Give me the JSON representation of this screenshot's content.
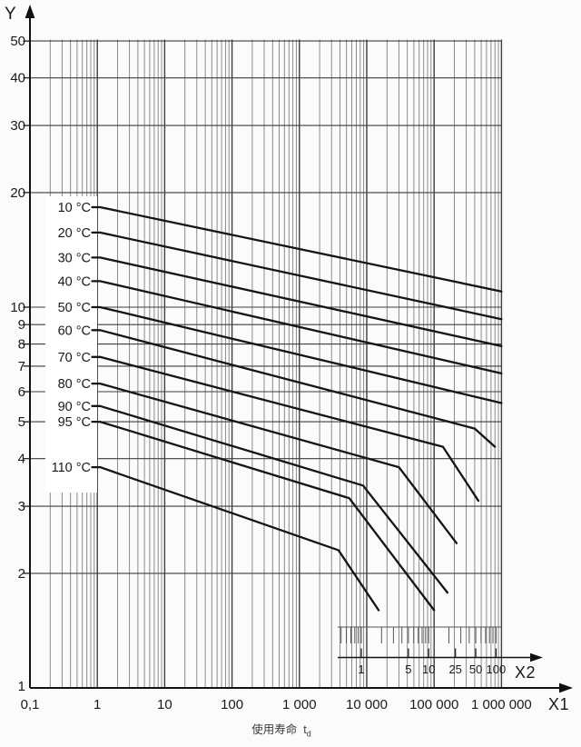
{
  "labels": {
    "y_axis": "Y",
    "x1_axis": "X1",
    "x2_axis": "X2"
  },
  "caption": {
    "text": "使用寿命",
    "symbol": "t",
    "symbol_sub": "d"
  },
  "colors": {
    "curve": "#141414",
    "grid_major": "#3e3e3e",
    "grid_minor": "#808080",
    "axis": "#111111",
    "background": "#fbfbfb",
    "label_box": "#ffffff"
  },
  "chart_data": {
    "type": "line",
    "title": "",
    "description": "Service-life nomogram: temperature curves on log-log grid",
    "x1_axis": {
      "label": "X1",
      "scale": "log",
      "range": [
        0.1,
        1000000
      ],
      "ticks": [
        {
          "v": 0.1,
          "label": "0,1"
        },
        {
          "v": 1,
          "label": "1"
        },
        {
          "v": 10,
          "label": "10"
        },
        {
          "v": 100,
          "label": "100"
        },
        {
          "v": 1000,
          "label": "1 000"
        },
        {
          "v": 10000,
          "label": "10 000"
        },
        {
          "v": 100000,
          "label": "100 000"
        },
        {
          "v": 1000000,
          "label": "1 000 000"
        }
      ]
    },
    "y_axis": {
      "label": "Y",
      "scale": "log",
      "range": [
        1,
        55
      ],
      "ticks": [
        {
          "v": 50,
          "label": "50"
        },
        {
          "v": 40,
          "label": "40"
        },
        {
          "v": 30,
          "label": "30"
        },
        {
          "v": 20,
          "label": "20"
        },
        {
          "v": 10,
          "label": "10"
        },
        {
          "v": 9,
          "label": "9"
        },
        {
          "v": 8,
          "label": "8"
        },
        {
          "v": 7,
          "label": "7"
        },
        {
          "v": 6,
          "label": "6"
        },
        {
          "v": 5,
          "label": "5"
        },
        {
          "v": 4,
          "label": "4"
        },
        {
          "v": 3,
          "label": "3"
        },
        {
          "v": 2,
          "label": "2"
        },
        {
          "v": 1,
          "label": "1"
        }
      ],
      "gridlines": [
        2,
        3,
        4,
        5,
        6,
        7,
        8,
        9,
        10,
        20,
        30,
        40,
        50
      ]
    },
    "x2_axis": {
      "label": "X2",
      "scale": "log",
      "range": [
        0.5,
        100
      ],
      "labeled_ticks": [
        {
          "v": 1,
          "label": "1"
        },
        {
          "v": 5,
          "label": "5"
        },
        {
          "v": 10,
          "label": "10"
        },
        {
          "v": 25,
          "label": "25"
        },
        {
          "v": 50,
          "label": "50"
        },
        {
          "v": 100,
          "label": "100"
        }
      ],
      "minor_ticks": [
        0.5,
        0.6,
        0.7,
        0.8,
        0.9,
        1,
        2,
        3,
        4,
        5,
        6,
        7,
        8,
        9,
        10,
        20,
        30,
        40,
        50,
        60,
        70,
        80,
        90,
        100
      ]
    },
    "series": [
      {
        "label": "10 °C",
        "points": [
          [
            1.1,
            18.3
          ],
          [
            1000000,
            11.0
          ]
        ]
      },
      {
        "label": "20 °C",
        "points": [
          [
            1.1,
            15.7
          ],
          [
            1000000,
            9.3
          ]
        ]
      },
      {
        "label": "30 °C",
        "points": [
          [
            1.1,
            13.5
          ],
          [
            1000000,
            7.9
          ]
        ]
      },
      {
        "label": "40 °C",
        "points": [
          [
            1.1,
            11.7
          ],
          [
            1000000,
            6.7
          ]
        ]
      },
      {
        "label": "50 °C",
        "points": [
          [
            1.1,
            10.0
          ],
          [
            1000000,
            5.6
          ]
        ]
      },
      {
        "label": "60 °C",
        "points": [
          [
            1.1,
            8.7
          ],
          [
            400000,
            4.8
          ],
          [
            800000,
            4.3
          ]
        ]
      },
      {
        "label": "70 °C",
        "points": [
          [
            1.1,
            7.4
          ],
          [
            135000,
            4.3
          ],
          [
            455000,
            3.1
          ]
        ]
      },
      {
        "label": "80 °C",
        "points": [
          [
            1.1,
            6.3
          ],
          [
            30000,
            3.8
          ],
          [
            215000,
            2.4
          ]
        ]
      },
      {
        "label": "90 °C",
        "points": [
          [
            1.1,
            5.5
          ],
          [
            8800,
            3.4
          ],
          [
            158000,
            1.78
          ]
        ]
      },
      {
        "label": "95 °C",
        "points": [
          [
            1.1,
            5.0
          ],
          [
            5500,
            3.15
          ],
          [
            100000,
            1.6
          ]
        ]
      },
      {
        "label": "110 °C",
        "points": [
          [
            1.1,
            3.8
          ],
          [
            3800,
            2.3
          ],
          [
            15000,
            1.6
          ]
        ]
      }
    ]
  }
}
